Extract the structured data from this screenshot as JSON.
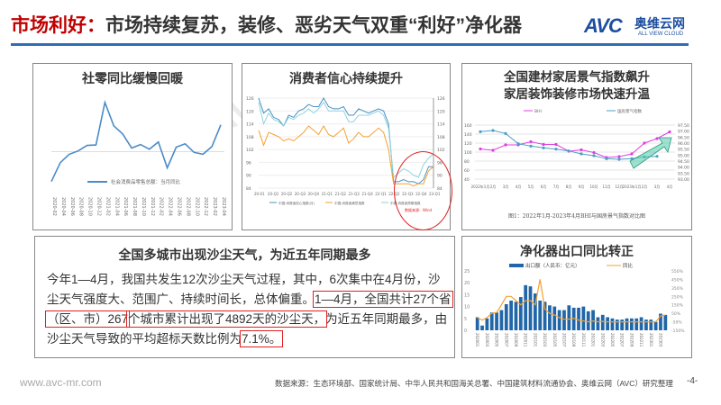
{
  "header": {
    "title_highlight": "市场利好：",
    "title_rest": "市场持续复苏，装修、恶劣天气双重“利好”净化器"
  },
  "logo": {
    "mark": "AVC",
    "cn": "奥维云网",
    "en": "ALL VIEW CLOUD"
  },
  "colors": {
    "accent_red": "#c00000",
    "rule_blue": "#2e6db4",
    "bar_blue": "#2166a8",
    "line_orange": "#f5a030",
    "line_magenta": "#e040e0",
    "line_teal": "#4aa0c8"
  },
  "panel1": {
    "title": "社零同比缓慢回暖"
  },
  "panel2": {
    "title": "消费者信心持续提升",
    "source": "数据来源：Wind"
  },
  "panel3": {
    "title_line1": "全国建材家居景气指数飙升",
    "title_line2": "家居装饰装修市场快速升温",
    "caption": "图1：2022年1月-2023年4月BHI与国房景气指数对比图"
  },
  "panel4": {
    "title": "全国多城市出现沙尘天气，为近五年同期最多",
    "p1": "今年1—4月，我国共发生12次沙尘天气过程，其中，6次集中在4月份，沙尘天气强度大、范围广、持续时间长，总体偏重。",
    "p2": "1—4月，全国共计27个省（区、市）267",
    "p3": "个城市累计出现了4892天的沙尘天，",
    "p4": "为近五年同期最多，由沙尘天气导致的平均超标天数比例为",
    "p5": "7.1%。"
  },
  "panel5": {
    "title": "净化器出口同比转正"
  },
  "footer": {
    "url": "www.avc-mr.com",
    "source": "数据来源：生态环境部、国家统计局、中华人民共和国海关总署、中国建筑材料流通协会、奥维云网（AVC）研究整理",
    "page": "-4-"
  },
  "chart_data": [
    {
      "type": "line",
      "title": "社零同比缓慢回暖",
      "x": [
        "2020-02",
        "2020-04",
        "2020-06",
        "2020-08",
        "2020-10",
        "2020-12",
        "2021-02",
        "2021-04",
        "2021-06",
        "2021-08",
        "2021-10",
        "2021-12",
        "2022-02",
        "2022-04",
        "2022-06",
        "2022-08",
        "2022-10",
        "2022-12",
        "2023-02",
        "2023-04"
      ],
      "series": [
        {
          "name": "社会消费品零售总额：当月同比",
          "values": [
            -20.5,
            -7.5,
            -1.8,
            0.5,
            4.3,
            4.6,
            33.8,
            17.7,
            12.1,
            2.5,
            4.9,
            1.7,
            6.7,
            -11.1,
            3.1,
            5.4,
            -0.5,
            -1.8,
            3.5,
            18.4
          ]
        }
      ],
      "legend": "center",
      "grid": false
    },
    {
      "type": "line",
      "title": "消费者信心持续提升",
      "xticks": [
        "20-01",
        "20-Q1",
        "20-Q2",
        "20-Q3",
        "20-Q4",
        "21-Q1",
        "21-Q2",
        "21-Q3",
        "21-Q4",
        "22-Q1",
        "22-Q2",
        "22-Q3",
        "22-Q4",
        "23-Q1"
      ],
      "ylim": [
        84,
        126
      ],
      "yticks": [
        84,
        90,
        96,
        102,
        108,
        114,
        120,
        126
      ],
      "series": [
        {
          "name": "中国:消费者信心指数(月)",
          "values": [
            126,
            119,
            121,
            117,
            116,
            113,
            118,
            117,
            120,
            121,
            123,
            122,
            122,
            126,
            122,
            121,
            121,
            122,
            118,
            118,
            121,
            120,
            119,
            120,
            121,
            120,
            114,
            87,
            87,
            88,
            87,
            87,
            86,
            88,
            94,
            94
          ]
        },
        {
          "name": "中国:消费者满意指数",
          "values": [
            111,
            104,
            110,
            109,
            108,
            106,
            107,
            106,
            108,
            110,
            113,
            111,
            109,
            113,
            109,
            108,
            110,
            112,
            105,
            107,
            110,
            108,
            108,
            110,
            112,
            110,
            102,
            86,
            86,
            86,
            86,
            85,
            86,
            86,
            92,
            94
          ]
        },
        {
          "name": "中国:消费者预期指数",
          "values": [
            124,
            114,
            119,
            116,
            115,
            113,
            117,
            116,
            118,
            119,
            121,
            119,
            121,
            124,
            120,
            120,
            120,
            120,
            115,
            115,
            118,
            118,
            118,
            119,
            120,
            118,
            112,
            89,
            91,
            93,
            92,
            90,
            89,
            95,
            98,
            100
          ]
        }
      ],
      "legend": "bottom",
      "grid": true
    },
    {
      "type": "line",
      "title": "全国建材家居景气指数飙升",
      "x": [
        "2022年1月",
        "2月",
        "3月",
        "4月",
        "5月",
        "6月",
        "7月",
        "8月",
        "9月",
        "10月",
        "11月",
        "12月",
        "2023年1月",
        "2月",
        "3月",
        "4月"
      ],
      "ylim": [
        40,
        160
      ],
      "yticks": [
        40,
        60,
        80,
        100,
        120,
        140,
        160
      ],
      "y2lim": [
        93.0,
        97.5
      ],
      "y2ticks": [
        "93.00",
        "93.50",
        "94.00",
        "94.50",
        "95.00",
        "95.50",
        "96.00",
        "96.50",
        "97.00",
        "97.50"
      ],
      "series": [
        {
          "name": "BHI",
          "axis": "left",
          "values": [
            107,
            104,
            116,
            116,
            123,
            117,
            117,
            102,
            105,
            99,
            88,
            90,
            96,
            120,
            130,
            145
          ]
        },
        {
          "name": "国房景气指数",
          "axis": "right",
          "values": [
            96.95,
            97.05,
            96.8,
            95.95,
            95.75,
            95.6,
            95.5,
            95.35,
            95.1,
            94.95,
            94.7,
            94.65,
            94.7,
            94.85,
            94.9,
            null
          ]
        }
      ],
      "legend": "top",
      "grid": true
    },
    {
      "type": "bar",
      "title": "净化器出口同比转正",
      "x": [
        "202001",
        "202002",
        "202003",
        "202004",
        "202005",
        "202006",
        "202007",
        "202008",
        "202009",
        "202010",
        "202011",
        "202012",
        "202101",
        "202102",
        "202103",
        "202104",
        "202105",
        "202106",
        "202107",
        "202108",
        "202109",
        "202110",
        "202111",
        "202112",
        "202201",
        "202202",
        "202203",
        "202204",
        "202205",
        "202206",
        "202207",
        "202208",
        "202209",
        "202210",
        "202211",
        "202212",
        "202301",
        "202302",
        "202303",
        "202304"
      ],
      "ylim": [
        0,
        25
      ],
      "yticks": [
        0,
        5,
        10,
        15,
        20,
        25
      ],
      "y2lim": [
        -150,
        550
      ],
      "y2ticks": [
        "-150%",
        "-50%",
        "50%",
        "150%",
        "250%",
        "350%",
        "450%",
        "550%"
      ],
      "series": [
        {
          "name": "出口额（人民币：亿元）",
          "type": "bar",
          "values": [
            5.5,
            2,
            5,
            7.5,
            7.5,
            8.5,
            11,
            12.5,
            12,
            14,
            19,
            18.5,
            15.5,
            12.5,
            12,
            10.5,
            10,
            8.5,
            8.5,
            10.5,
            9.5,
            9.5,
            10,
            8,
            8.5,
            5.5,
            6.5,
            5.5,
            5,
            4.5,
            4.5,
            5,
            5,
            5,
            5.5,
            4.5,
            4.5,
            3.5,
            7,
            6.5
          ]
        },
        {
          "name": "同比",
          "type": "line",
          "values": [
            0,
            -30,
            0,
            50,
            60,
            150,
            250,
            250,
            200,
            150,
            200,
            200,
            150,
            450,
            100,
            50,
            30,
            0,
            -20,
            -20,
            -10,
            -30,
            -40,
            -50,
            -40,
            -50,
            -45,
            -50,
            -50,
            -50,
            -50,
            -50,
            -50,
            -50,
            -50,
            -50,
            -50,
            -50,
            20,
            30
          ]
        }
      ],
      "legend": "top",
      "grid": false
    }
  ]
}
